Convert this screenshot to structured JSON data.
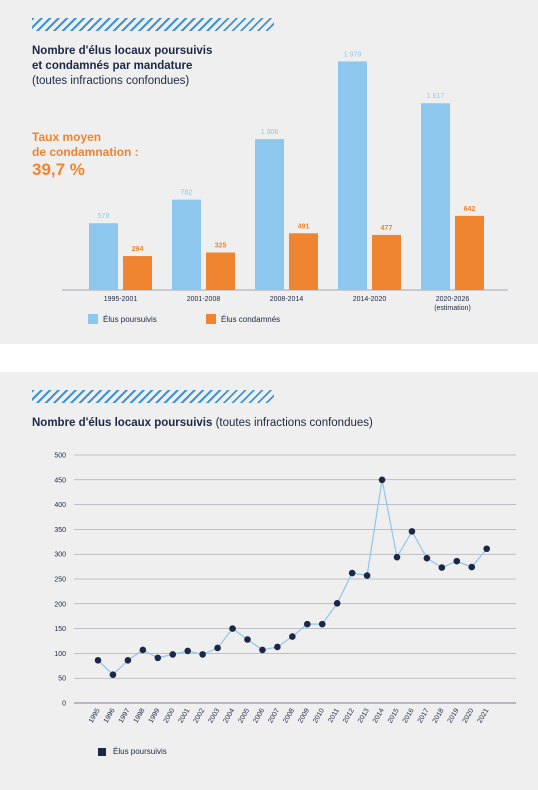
{
  "chart_data": [
    {
      "type": "bar",
      "title_bold": "Nombre d'élus locaux poursuivis",
      "title_bold2": "et condamnés par mandature",
      "title_normal": "(toutes infractions confondues)",
      "categories": [
        "1995-2001",
        "2001-2008",
        "2008-2014",
        "2014-2020",
        "2020-2026"
      ],
      "category_notes": [
        "",
        "",
        "",
        "",
        "(estimation)"
      ],
      "series": [
        {
          "name": "Élus poursuivis",
          "values": [
            578,
            782,
            1306,
            1979,
            1617
          ],
          "labels": [
            "578",
            "782",
            "1 306",
            "1 979",
            "1 617"
          ],
          "color": "#8dc7ee"
        },
        {
          "name": "Élus condamnés",
          "values": [
            294,
            325,
            491,
            477,
            642
          ],
          "labels": [
            "294",
            "325",
            "491",
            "477",
            "642"
          ],
          "color": "#ef8431"
        }
      ],
      "ylim": [
        0,
        2000
      ],
      "legend": "bottom-left",
      "annotation": {
        "label_line1": "Taux moyen",
        "label_line2": "de condamnation :",
        "value": "39,7 %"
      }
    },
    {
      "type": "line",
      "title_bold": "Nombre d'élus locaux poursuivis",
      "title_normal": " (toutes infractions confondues)",
      "x": [
        "1995",
        "1996",
        "1997",
        "1998",
        "1999",
        "2000",
        "2001",
        "2002",
        "2003",
        "2004",
        "2005",
        "2006",
        "2007",
        "2008",
        "2009",
        "2010",
        "2011",
        "2012",
        "2013",
        "2014",
        "2015",
        "2016",
        "2017",
        "2018",
        "2019",
        "2020",
        "2021"
      ],
      "series": [
        {
          "name": "Élus poursuivis",
          "values": [
            86,
            57,
            86,
            107,
            91,
            98,
            105,
            98,
            111,
            150,
            128,
            107,
            113,
            134,
            159,
            159,
            201,
            262,
            257,
            450,
            294,
            346,
            292,
            273,
            286,
            274,
            311
          ]
        }
      ],
      "yticks": [
        "500",
        "450",
        "400",
        "350",
        "300",
        "250",
        "200",
        "150",
        "100",
        "50",
        "0"
      ],
      "ylim": [
        0,
        500
      ],
      "grid": true,
      "legend": "bottom-left",
      "line_color": "#8dc7ee",
      "marker_color": "#1d2846"
    }
  ]
}
